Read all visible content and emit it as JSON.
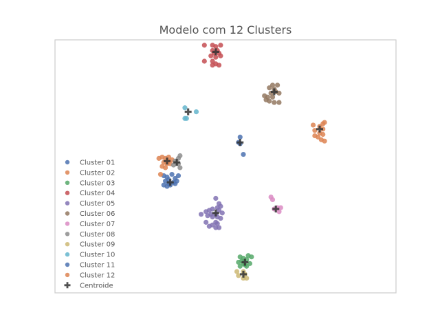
{
  "chart_data": {
    "type": "scatter",
    "title": "Modelo com 12 Clusters",
    "xlabel": "",
    "ylabel": "",
    "xlim": [
      -10.5,
      10.5
    ],
    "ylim": [
      -9.5,
      9.5
    ],
    "grid": false,
    "legend_position": "center-left",
    "centroid_label": "Centroide",
    "centroid_color": "#333333",
    "series": [
      {
        "name": "Cluster 01",
        "color": "#4c72b0",
        "centroid": [
          -3.4,
          -1.2
        ],
        "points": [
          [
            -3.8,
            -0.7
          ],
          [
            -3.6,
            -0.8
          ],
          [
            -3.3,
            -0.6
          ],
          [
            -3.1,
            -0.9
          ],
          [
            -3.7,
            -1.1
          ],
          [
            -3.5,
            -1.3
          ],
          [
            -3.2,
            -1.2
          ],
          [
            -3.0,
            -1.1
          ],
          [
            -3.8,
            -1.4
          ],
          [
            -3.6,
            -1.5
          ],
          [
            -3.4,
            -1.4
          ],
          [
            -3.1,
            -1.3
          ],
          [
            -2.9,
            -0.7
          ],
          [
            -3.5,
            -1.0
          ]
        ]
      },
      {
        "name": "Cluster 02",
        "color": "#dd8452",
        "centroid": [
          -3.6,
          0.4
        ],
        "points": [
          [
            -4.1,
            0.6
          ],
          [
            -3.9,
            0.7
          ],
          [
            -3.7,
            0.6
          ],
          [
            -3.5,
            0.7
          ],
          [
            -3.3,
            0.5
          ],
          [
            -3.8,
            0.3
          ],
          [
            -3.6,
            0.2
          ],
          [
            -3.4,
            0.2
          ],
          [
            -3.9,
            0.0
          ],
          [
            -3.7,
            -0.1
          ],
          [
            -4.0,
            -0.6
          ],
          [
            -3.5,
            0.4
          ]
        ]
      },
      {
        "name": "Cluster 03",
        "color": "#55a868",
        "centroid": [
          1.2,
          -7.2
        ],
        "points": [
          [
            0.9,
            -6.8
          ],
          [
            1.1,
            -6.9
          ],
          [
            1.3,
            -7.0
          ],
          [
            1.5,
            -7.3
          ],
          [
            1.0,
            -7.1
          ],
          [
            1.2,
            -7.4
          ],
          [
            0.9,
            -7.5
          ],
          [
            1.4,
            -6.7
          ],
          [
            1.6,
            -6.8
          ],
          [
            0.8,
            -7.2
          ],
          [
            1.3,
            -7.5
          ],
          [
            1.1,
            -7.3
          ]
        ]
      },
      {
        "name": "Cluster 04",
        "color": "#c44e52",
        "centroid": [
          -0.6,
          8.6
        ],
        "points": [
          [
            -1.3,
            9.1
          ],
          [
            -0.8,
            9.1
          ],
          [
            -0.6,
            9.0
          ],
          [
            -0.3,
            9.1
          ],
          [
            -0.8,
            8.7
          ],
          [
            -0.5,
            8.7
          ],
          [
            -0.7,
            8.5
          ],
          [
            -0.4,
            8.5
          ],
          [
            -0.3,
            8.3
          ],
          [
            -0.6,
            8.2
          ],
          [
            -0.9,
            8.3
          ],
          [
            -1.3,
            7.9
          ],
          [
            -0.8,
            7.9
          ],
          [
            -0.6,
            7.7
          ],
          [
            -0.4,
            7.6
          ],
          [
            -0.8,
            7.6
          ]
        ]
      },
      {
        "name": "Cluster 05",
        "color": "#8172b3",
        "centroid": [
          -0.6,
          -3.5
        ],
        "points": [
          [
            -0.6,
            -2.4
          ],
          [
            -0.4,
            -2.8
          ],
          [
            -0.3,
            -3.0
          ],
          [
            -0.5,
            -3.1
          ],
          [
            -0.8,
            -3.2
          ],
          [
            -1.0,
            -3.3
          ],
          [
            -1.2,
            -3.4
          ],
          [
            -0.4,
            -3.3
          ],
          [
            -0.2,
            -3.5
          ],
          [
            -0.6,
            -3.6
          ],
          [
            -0.9,
            -3.6
          ],
          [
            -1.1,
            -3.7
          ],
          [
            -0.8,
            -3.8
          ],
          [
            -0.5,
            -3.8
          ],
          [
            -0.3,
            -3.9
          ],
          [
            -0.6,
            -4.2
          ],
          [
            -1.2,
            -4.2
          ],
          [
            -0.8,
            -4.4
          ],
          [
            -0.5,
            -4.3
          ],
          [
            -0.6,
            -4.6
          ],
          [
            -0.4,
            -4.6
          ],
          [
            -1.0,
            -4.5
          ],
          [
            -1.5,
            -3.6
          ]
        ]
      },
      {
        "name": "Cluster 06",
        "color": "#937860",
        "centroid": [
          3.0,
          5.6
        ],
        "points": [
          [
            2.9,
            6.1
          ],
          [
            3.2,
            6.1
          ],
          [
            3.0,
            5.8
          ],
          [
            2.7,
            5.9
          ],
          [
            3.1,
            5.6
          ],
          [
            2.8,
            5.5
          ],
          [
            3.3,
            5.5
          ],
          [
            2.6,
            5.2
          ],
          [
            2.9,
            5.2
          ],
          [
            3.3,
            4.8
          ],
          [
            3.0,
            4.8
          ],
          [
            2.7,
            4.9
          ],
          [
            2.4,
            5.3
          ],
          [
            2.5,
            5.0
          ]
        ]
      },
      {
        "name": "Cluster 07",
        "color": "#da8bc3",
        "centroid": [
          3.1,
          -3.2
        ],
        "points": [
          [
            2.8,
            -2.3
          ],
          [
            2.9,
            -2.5
          ],
          [
            3.2,
            -3.1
          ],
          [
            3.4,
            -3.1
          ],
          [
            3.0,
            -3.2
          ],
          [
            3.3,
            -3.4
          ]
        ]
      },
      {
        "name": "Cluster 08",
        "color": "#8c8c8c",
        "centroid": [
          -3.0,
          0.3
        ],
        "points": [
          [
            -2.8,
            0.8
          ],
          [
            -2.9,
            0.6
          ],
          [
            -3.1,
            0.4
          ],
          [
            -2.9,
            0.2
          ],
          [
            -3.2,
            0.1
          ],
          [
            -2.8,
            -0.1
          ]
        ]
      },
      {
        "name": "Cluster 09",
        "color": "#ccb974",
        "centroid": [
          1.1,
          -8.1
        ],
        "points": [
          [
            0.7,
            -7.9
          ],
          [
            1.1,
            -7.9
          ],
          [
            1.2,
            -8.1
          ],
          [
            0.8,
            -8.2
          ],
          [
            1.1,
            -8.4
          ],
          [
            1.3,
            -8.4
          ]
        ]
      },
      {
        "name": "Cluster 10",
        "color": "#64b5cd",
        "centroid": [
          -2.3,
          4.1
        ],
        "points": [
          [
            -2.5,
            4.4
          ],
          [
            -1.8,
            4.1
          ],
          [
            -2.5,
            3.6
          ],
          [
            -2.4,
            3.6
          ]
        ]
      },
      {
        "name": "Cluster 11",
        "color": "#4c72b0",
        "centroid": [
          0.9,
          1.8
        ],
        "points": [
          [
            0.9,
            2.2
          ],
          [
            0.8,
            1.8
          ],
          [
            0.9,
            1.7
          ],
          [
            1.1,
            0.9
          ]
        ]
      },
      {
        "name": "Cluster 12",
        "color": "#dd8452",
        "centroid": [
          5.8,
          2.8
        ],
        "points": [
          [
            6.1,
            3.3
          ],
          [
            6.0,
            3.2
          ],
          [
            5.4,
            3.1
          ],
          [
            5.8,
            3.0
          ],
          [
            6.0,
            2.8
          ],
          [
            5.5,
            2.7
          ],
          [
            5.8,
            2.5
          ],
          [
            6.0,
            2.4
          ],
          [
            5.5,
            2.3
          ],
          [
            5.7,
            2.2
          ],
          [
            5.9,
            2.0
          ],
          [
            6.1,
            1.9
          ]
        ]
      }
    ]
  }
}
